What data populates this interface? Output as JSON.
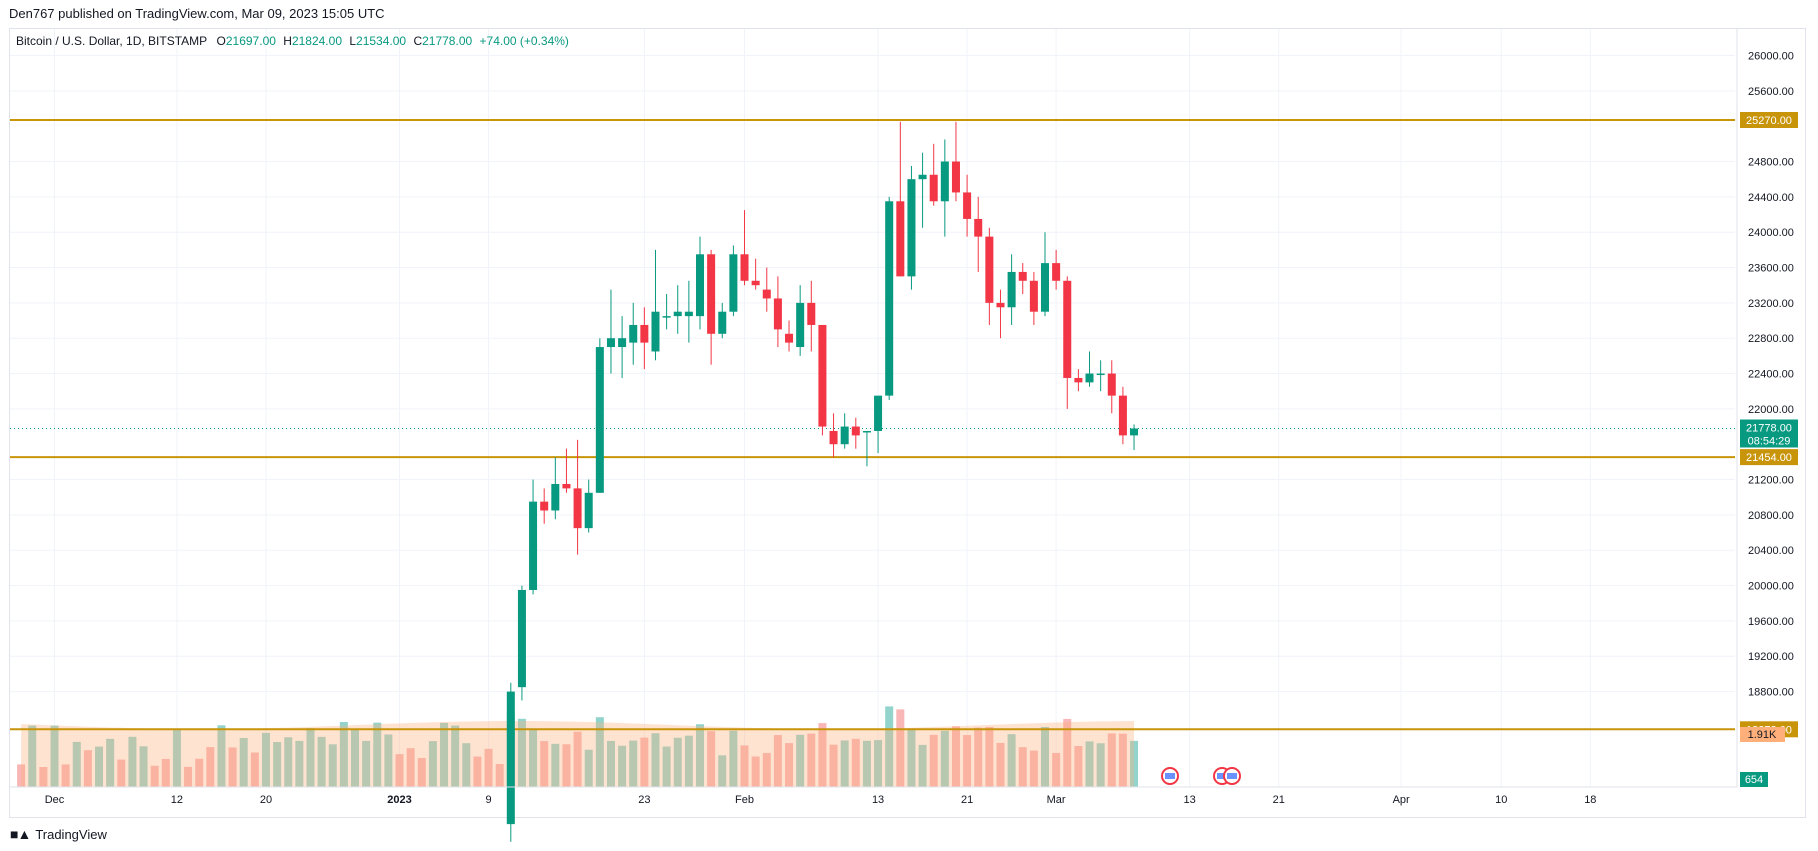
{
  "header": {
    "published": "Den767 published on TradingView.com, Mar 09, 2023 15:05 UTC"
  },
  "legend": {
    "symbol": "Bitcoin / U.S. Dollar, 1D, BITSTAMP",
    "open_label": "O",
    "open": "21697.00",
    "high_label": "H",
    "high": "21824.00",
    "low_label": "L",
    "low": "21534.00",
    "close_label": "C",
    "close": "21778.00",
    "change": "+74.00 (+0.34%)"
  },
  "footer": {
    "brand": "TradingView"
  },
  "colors": {
    "up": "#089981",
    "down": "#f23645",
    "up_volume": "#7fcdc3",
    "down_volume": "#f7a9a9",
    "volume_ma": "#ffb07a",
    "level_line": "#c8940a",
    "last_price": "#089981",
    "grid": "#f0f3fa"
  },
  "chart_data": {
    "type": "candlestick",
    "symbol": "Bitcoin / U.S. Dollar",
    "interval": "1D",
    "exchange": "BITSTAMP",
    "price_axis": {
      "ticks": [
        26000,
        25600,
        24800,
        24400,
        24000,
        23600,
        23200,
        22800,
        22400,
        22000,
        21200,
        20800,
        20400,
        20000,
        19600,
        19200,
        18800
      ],
      "range": [
        17720,
        26300
      ]
    },
    "time_axis": {
      "labels": [
        {
          "label": "Dec",
          "day": 1
        },
        {
          "label": "12",
          "day": 12
        },
        {
          "label": "20",
          "day": 20
        },
        {
          "label": "2023",
          "day": 32
        },
        {
          "label": "9",
          "day": 40
        },
        {
          "label": "23",
          "day": 54
        },
        {
          "label": "Feb",
          "day": 63
        },
        {
          "label": "13",
          "day": 75
        },
        {
          "label": "21",
          "day": 83
        },
        {
          "label": "Mar",
          "day": 91
        },
        {
          "label": "13",
          "day": 103
        },
        {
          "label": "21",
          "day": 111
        },
        {
          "label": "Apr",
          "day": 122
        },
        {
          "label": "10",
          "day": 131
        },
        {
          "label": "18",
          "day": 139
        }
      ],
      "range": [
        -3,
        152
      ]
    },
    "levels": [
      {
        "label": "25270.00",
        "price": 25270
      },
      {
        "label": "21454.00",
        "price": 21454
      },
      {
        "label": "18373.00",
        "price": 18373
      }
    ],
    "last_price": {
      "label": "21778.00",
      "countdown": "08:54:29",
      "price": 21778
    },
    "volume_labels": {
      "ma": "1.91K",
      "volume": "654"
    },
    "candles": [
      {
        "d": 42,
        "o": 17300,
        "h": 18900,
        "l": 17100,
        "c": 18800
      },
      {
        "d": 43,
        "o": 18850,
        "h": 20000,
        "l": 18700,
        "c": 19950
      },
      {
        "d": 44,
        "o": 19950,
        "h": 21200,
        "l": 19900,
        "c": 20950
      },
      {
        "d": 45,
        "o": 20950,
        "h": 21100,
        "l": 20700,
        "c": 20850
      },
      {
        "d": 46,
        "o": 20850,
        "h": 21450,
        "l": 20750,
        "c": 21150
      },
      {
        "d": 47,
        "o": 21150,
        "h": 21550,
        "l": 21050,
        "c": 21100
      },
      {
        "d": 48,
        "o": 21100,
        "h": 21650,
        "l": 20350,
        "c": 20650
      },
      {
        "d": 49,
        "o": 20650,
        "h": 21200,
        "l": 20600,
        "c": 21050
      },
      {
        "d": 50,
        "o": 21050,
        "h": 22800,
        "l": 21050,
        "c": 22700
      },
      {
        "d": 51,
        "o": 22700,
        "h": 23350,
        "l": 22400,
        "c": 22800
      },
      {
        "d": 52,
        "o": 22700,
        "h": 23050,
        "l": 22350,
        "c": 22800
      },
      {
        "d": 53,
        "o": 22750,
        "h": 23200,
        "l": 22500,
        "c": 22950
      },
      {
        "d": 54,
        "o": 22950,
        "h": 23150,
        "l": 22450,
        "c": 22750
      },
      {
        "d": 55,
        "o": 22650,
        "h": 23800,
        "l": 22550,
        "c": 23100
      },
      {
        "d": 56,
        "o": 23050,
        "h": 23300,
        "l": 22900,
        "c": 23050
      },
      {
        "d": 57,
        "o": 23050,
        "h": 23400,
        "l": 22850,
        "c": 23100
      },
      {
        "d": 58,
        "o": 23050,
        "h": 23450,
        "l": 22750,
        "c": 23100
      },
      {
        "d": 59,
        "o": 23050,
        "h": 23950,
        "l": 22900,
        "c": 23750
      },
      {
        "d": 60,
        "o": 23750,
        "h": 23800,
        "l": 22500,
        "c": 22850
      },
      {
        "d": 61,
        "o": 22850,
        "h": 23200,
        "l": 22800,
        "c": 23100
      },
      {
        "d": 62,
        "o": 23100,
        "h": 23850,
        "l": 23050,
        "c": 23750
      },
      {
        "d": 63,
        "o": 23750,
        "h": 24250,
        "l": 23400,
        "c": 23450
      },
      {
        "d": 64,
        "o": 23450,
        "h": 23700,
        "l": 23350,
        "c": 23400
      },
      {
        "d": 65,
        "o": 23350,
        "h": 23600,
        "l": 23100,
        "c": 23250
      },
      {
        "d": 66,
        "o": 23250,
        "h": 23500,
        "l": 22700,
        "c": 22900
      },
      {
        "d": 67,
        "o": 22850,
        "h": 23000,
        "l": 22650,
        "c": 22750
      },
      {
        "d": 68,
        "o": 22700,
        "h": 23400,
        "l": 22600,
        "c": 23200
      },
      {
        "d": 69,
        "o": 23200,
        "h": 23450,
        "l": 22650,
        "c": 22950
      },
      {
        "d": 70,
        "o": 22950,
        "h": 22950,
        "l": 21700,
        "c": 21800
      },
      {
        "d": 71,
        "o": 21750,
        "h": 21950,
        "l": 21450,
        "c": 21600
      },
      {
        "d": 72,
        "o": 21600,
        "h": 21950,
        "l": 21550,
        "c": 21800
      },
      {
        "d": 73,
        "o": 21800,
        "h": 21900,
        "l": 21550,
        "c": 21700
      },
      {
        "d": 74,
        "o": 21750,
        "h": 21750,
        "l": 21350,
        "c": 21750
      },
      {
        "d": 75,
        "o": 21750,
        "h": 22100,
        "l": 21500,
        "c": 22150
      },
      {
        "d": 76,
        "o": 22150,
        "h": 24400,
        "l": 22100,
        "c": 24350
      },
      {
        "d": 77,
        "o": 24350,
        "h": 25250,
        "l": 23500,
        "c": 23500
      },
      {
        "d": 78,
        "o": 23500,
        "h": 24750,
        "l": 23350,
        "c": 24600
      },
      {
        "d": 79,
        "o": 24600,
        "h": 24900,
        "l": 24050,
        "c": 24650
      },
      {
        "d": 80,
        "o": 24650,
        "h": 25000,
        "l": 24300,
        "c": 24350
      },
      {
        "d": 81,
        "o": 24350,
        "h": 25050,
        "l": 23950,
        "c": 24800
      },
      {
        "d": 82,
        "o": 24800,
        "h": 25250,
        "l": 24350,
        "c": 24450
      },
      {
        "d": 83,
        "o": 24450,
        "h": 24650,
        "l": 23950,
        "c": 24150
      },
      {
        "d": 84,
        "o": 24150,
        "h": 24400,
        "l": 23550,
        "c": 23950
      },
      {
        "d": 85,
        "o": 23950,
        "h": 24050,
        "l": 22950,
        "c": 23200
      },
      {
        "d": 86,
        "o": 23200,
        "h": 23350,
        "l": 22800,
        "c": 23150
      },
      {
        "d": 87,
        "o": 23150,
        "h": 23750,
        "l": 22950,
        "c": 23550
      },
      {
        "d": 88,
        "o": 23550,
        "h": 23650,
        "l": 23300,
        "c": 23450
      },
      {
        "d": 89,
        "o": 23450,
        "h": 23550,
        "l": 22950,
        "c": 23100
      },
      {
        "d": 90,
        "o": 23100,
        "h": 24000,
        "l": 23050,
        "c": 23650
      },
      {
        "d": 91,
        "o": 23650,
        "h": 23800,
        "l": 23350,
        "c": 23450
      },
      {
        "d": 92,
        "o": 23450,
        "h": 23500,
        "l": 22000,
        "c": 22350
      },
      {
        "d": 93,
        "o": 22350,
        "h": 22450,
        "l": 22200,
        "c": 22300
      },
      {
        "d": 94,
        "o": 22300,
        "h": 22650,
        "l": 22250,
        "c": 22400
      },
      {
        "d": 95,
        "o": 22400,
        "h": 22550,
        "l": 22200,
        "c": 22400
      },
      {
        "d": 96,
        "o": 22400,
        "h": 22550,
        "l": 21950,
        "c": 22150
      },
      {
        "d": 97,
        "o": 22150,
        "h": 22250,
        "l": 21600,
        "c": 21700
      },
      {
        "d": 98,
        "o": 21700,
        "h": 21824,
        "l": 21534,
        "c": 21778
      }
    ]
  }
}
